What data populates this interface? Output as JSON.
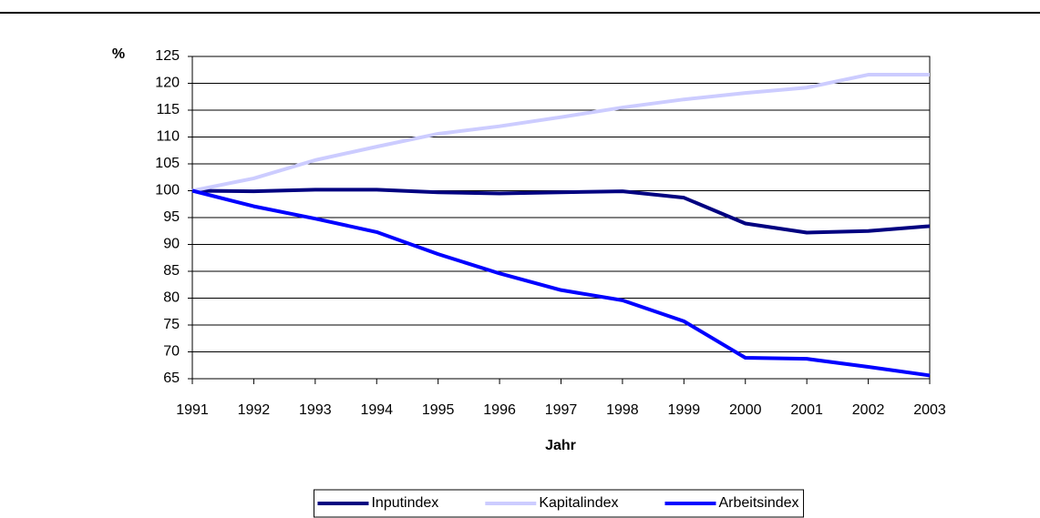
{
  "chart_data": {
    "type": "line",
    "ylabel": "%",
    "xlabel": "Jahr",
    "x": [
      1991,
      1992,
      1993,
      1994,
      1995,
      1996,
      1997,
      1998,
      1999,
      2000,
      2001,
      2002,
      2003
    ],
    "xlim": [
      1991,
      2003
    ],
    "xticks": [
      1991,
      1992,
      1993,
      1994,
      1995,
      1996,
      1997,
      1998,
      1999,
      2000,
      2001,
      2002,
      2003
    ],
    "ylim": [
      65,
      125
    ],
    "yticks": [
      65,
      70,
      75,
      80,
      85,
      90,
      95,
      100,
      105,
      110,
      115,
      120,
      125
    ],
    "grid": true,
    "legend": "bottom",
    "series": [
      {
        "name": "Inputindex",
        "color": "#000080",
        "values": [
          100,
          99.9,
          100.2,
          100.2,
          99.7,
          99.5,
          99.7,
          99.9,
          98.7,
          93.9,
          92.2,
          92.5,
          93.4
        ]
      },
      {
        "name": "Kapitalindex",
        "color": "#ccccff",
        "values": [
          100,
          102.3,
          105.7,
          108.2,
          110.6,
          112.0,
          113.7,
          115.5,
          117.0,
          118.2,
          119.2,
          121.6,
          121.6
        ]
      },
      {
        "name": "Arbeitsindex",
        "color": "#0000ff",
        "values": [
          100,
          97.1,
          94.8,
          92.3,
          88.2,
          84.6,
          81.5,
          79.6,
          75.7,
          68.9,
          68.7,
          67.2,
          65.6
        ]
      }
    ]
  }
}
